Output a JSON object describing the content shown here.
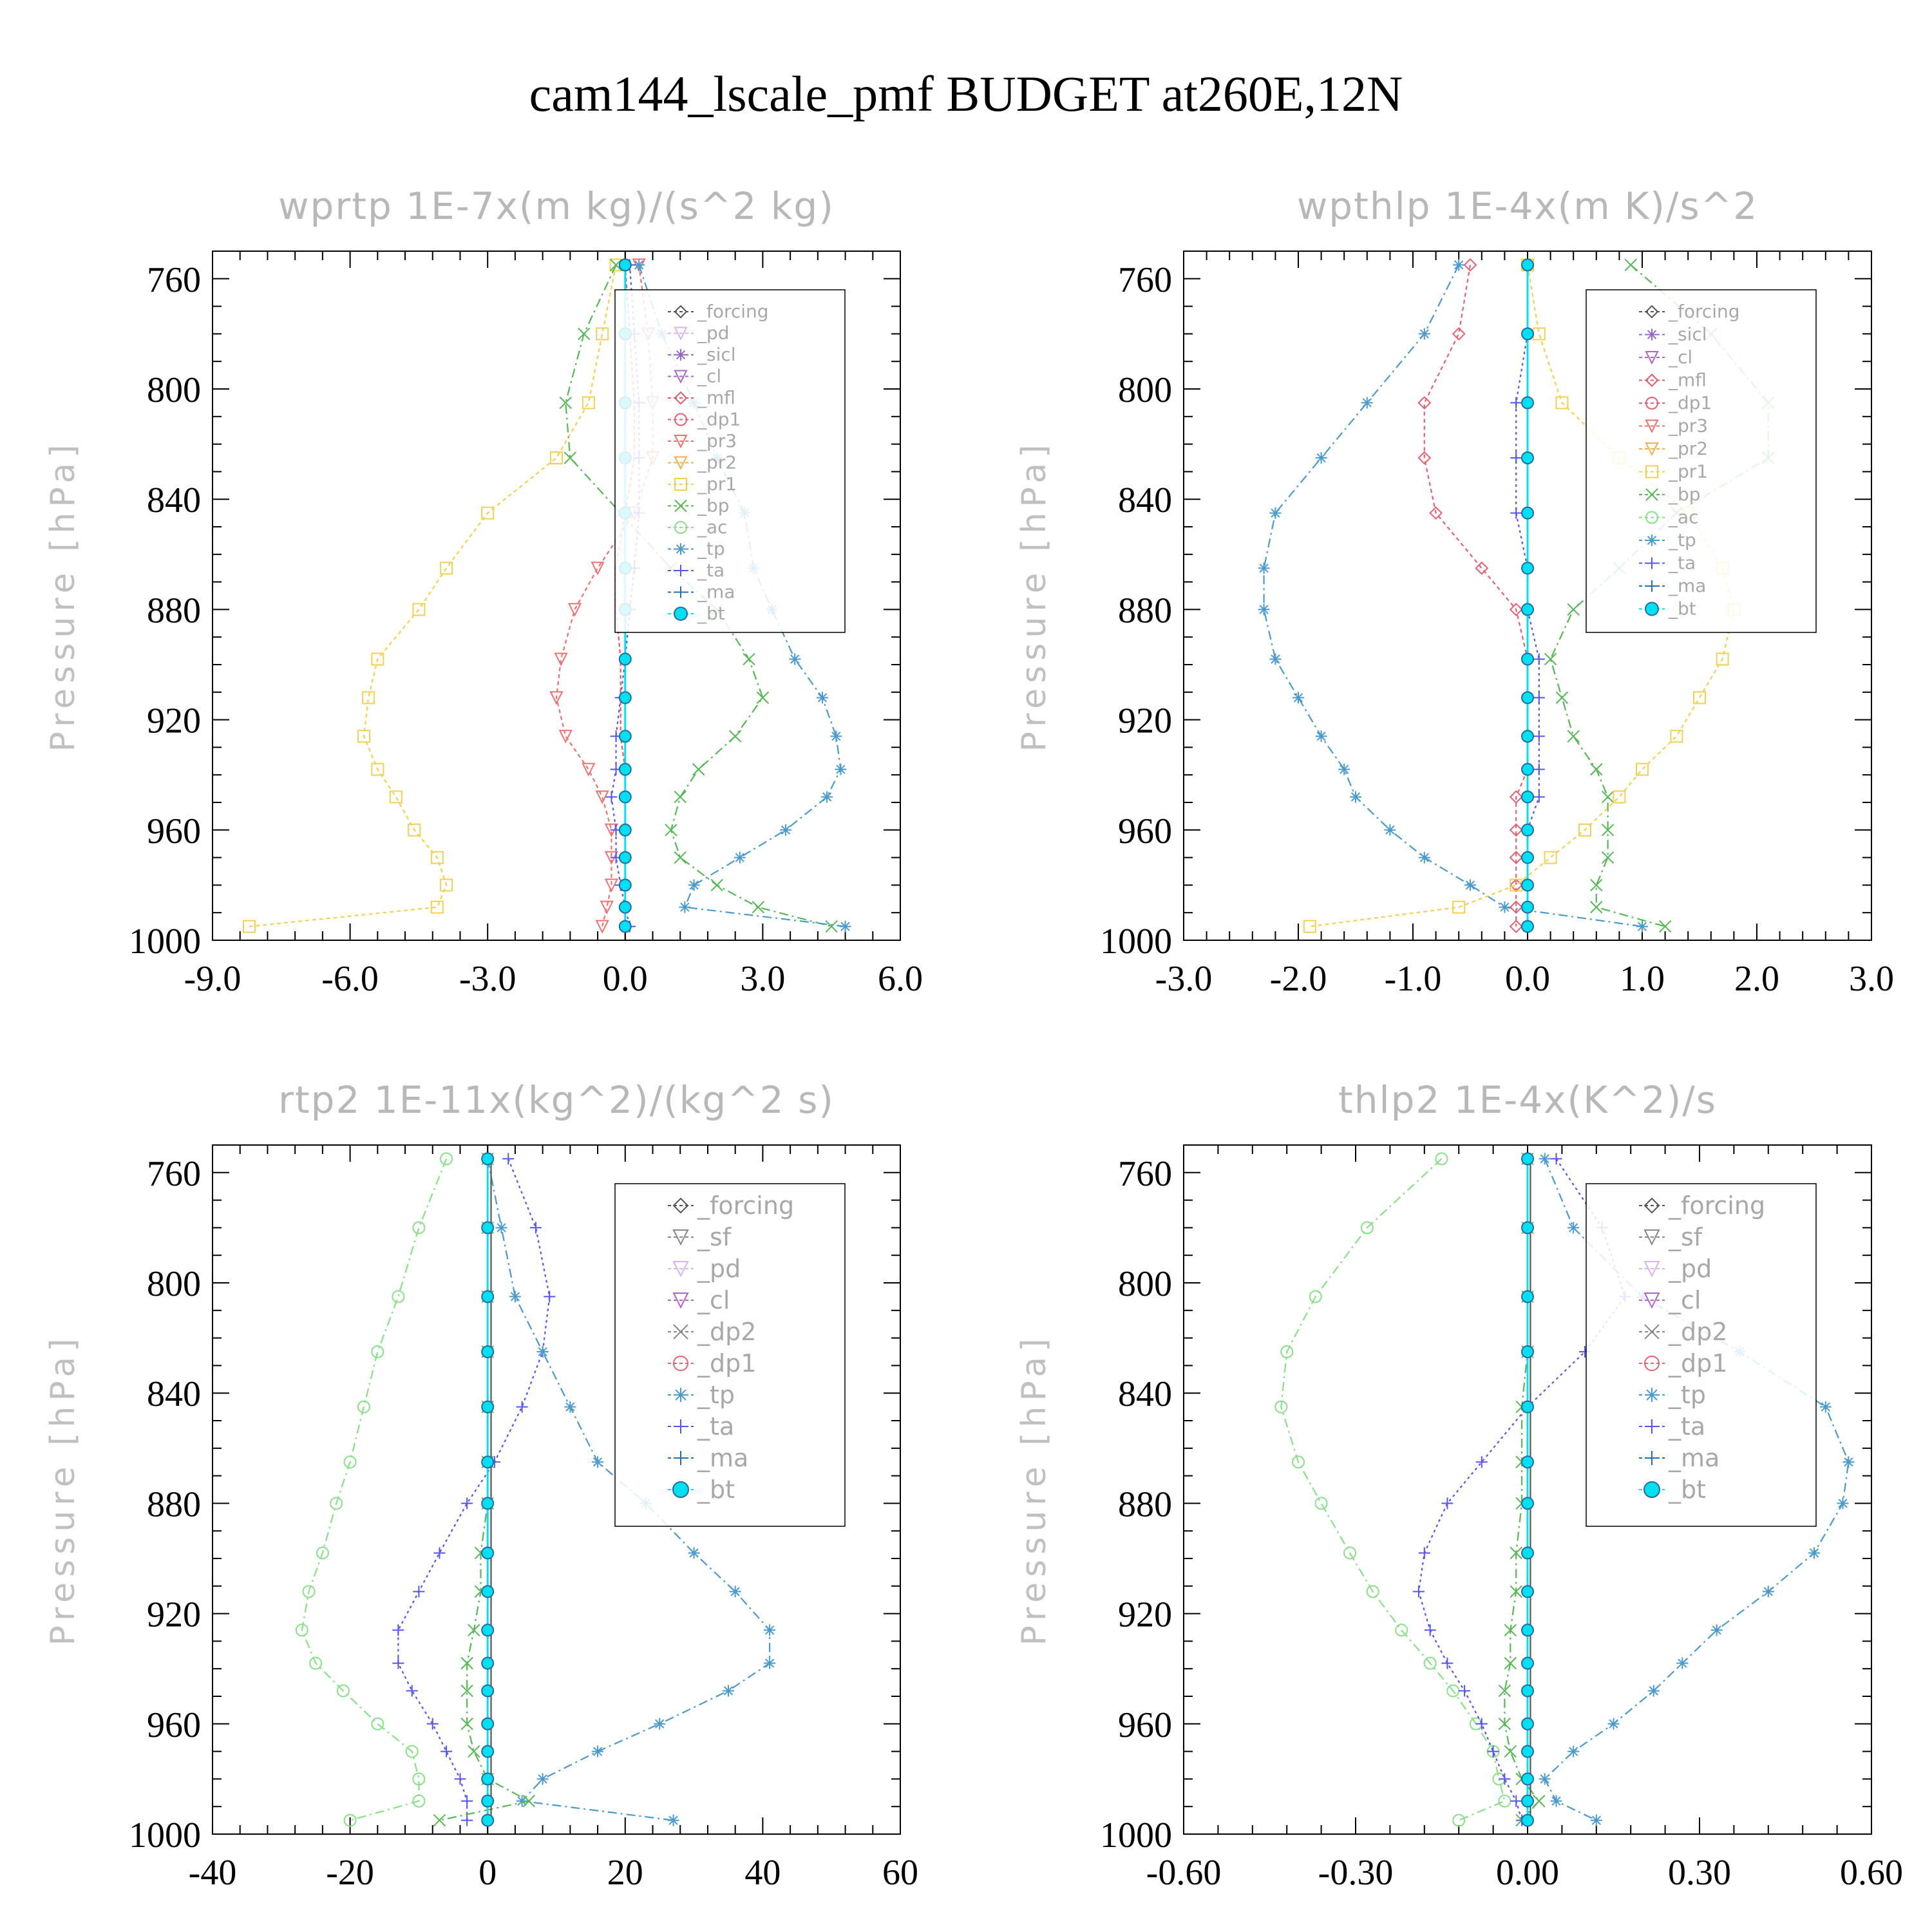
{
  "title": "cam144_lscale_pmf  BUDGET at260E,12N",
  "ylabel": "Pressure [hPa]",
  "colors": {
    "forcing": "#555555",
    "pd": "#d8b4f0",
    "sicl": "#9966cc",
    "cl": "#b066c8",
    "mfl": "#e05a6a",
    "dp1": "#e86070",
    "pr3": "#f07070",
    "pr2": "#f0b050",
    "pr1": "#f5d050",
    "bp": "#55b855",
    "ac": "#88e088",
    "tp": "#4a9ad0",
    "ta": "#5555ee",
    "ma": "#2070b0",
    "bt": "#00e0f0"
  },
  "chart_data": [
    {
      "type": "line",
      "title": "wprtp  1E-7x(m kg)/(s^2 kg)",
      "ylabel": "Pressure [hPa]",
      "xlim": [
        -9,
        6
      ],
      "ylim": [
        1000,
        750
      ],
      "xticks": [
        "-9.0",
        "-6.0",
        "-3.0",
        "0.0",
        "3.0",
        "6.0"
      ],
      "xtick_values": [
        -9,
        -6,
        -3,
        0,
        3,
        6
      ],
      "yticks": [
        "760",
        "800",
        "840",
        "880",
        "920",
        "960",
        "1000"
      ],
      "ytick_values": [
        760,
        800,
        840,
        880,
        920,
        960,
        1000
      ],
      "legend": [
        "_forcing",
        "_pd",
        "_sicl",
        "_cl",
        "_mfl",
        "_dp1",
        "_pr3",
        "_pr2",
        "_pr1",
        "_bp",
        "_ac",
        "_tp",
        "_ta",
        "_ma",
        "_bt"
      ],
      "p": [
        755,
        780,
        805,
        825,
        845,
        865,
        880,
        898,
        912,
        926,
        938,
        948,
        960,
        970,
        980,
        988,
        995
      ],
      "series": [
        {
          "key": "pr1",
          "marker": "square",
          "dash": "6,5",
          "x": [
            -0.2,
            -0.5,
            -0.8,
            -1.5,
            -3.0,
            -3.9,
            -4.5,
            -5.4,
            -5.6,
            -5.7,
            -5.4,
            -5.0,
            -4.6,
            -4.1,
            -3.9,
            -4.1,
            -8.2
          ]
        },
        {
          "key": "pr3",
          "marker": "tri-down",
          "dash": "6,5",
          "x": [
            0.3,
            0.5,
            0.6,
            0.6,
            0.2,
            -0.6,
            -1.1,
            -1.4,
            -1.5,
            -1.3,
            -0.8,
            -0.5,
            -0.3,
            -0.3,
            -0.3,
            -0.4,
            -0.5
          ]
        },
        {
          "key": "bp",
          "marker": "x",
          "dash": "14,6,3,6",
          "x": [
            -0.2,
            -0.9,
            -1.3,
            -1.2,
            -0.1,
            1.0,
            2.0,
            2.7,
            3.0,
            2.4,
            1.6,
            1.2,
            1.0,
            1.2,
            2.0,
            2.9,
            4.5
          ]
        },
        {
          "key": "tp",
          "marker": "star",
          "dash": "14,6,3,6",
          "x": [
            0.3,
            0.8,
            1.5,
            2.0,
            2.6,
            2.8,
            3.2,
            3.7,
            4.3,
            4.6,
            4.7,
            4.4,
            3.5,
            2.5,
            1.5,
            1.3,
            4.8
          ]
        },
        {
          "key": "ta",
          "marker": "plus",
          "dash": "4,5",
          "x": [
            0.1,
            0.2,
            0.3,
            0.3,
            0.3,
            0.2,
            0.1,
            0.0,
            -0.1,
            -0.2,
            -0.2,
            -0.3,
            -0.2,
            -0.2,
            -0.1,
            0.0,
            0.1
          ]
        },
        {
          "key": "mfl",
          "marker": "none",
          "dash": "6,4",
          "x": [
            0.0,
            0.1,
            0.2,
            0.2,
            0.0,
            -0.2,
            -0.2,
            -0.1,
            -0.1,
            -0.1,
            0.0,
            0.0,
            0.0,
            0.0,
            0.0,
            0.0,
            0.0
          ]
        },
        {
          "key": "bt",
          "marker": "dot",
          "dash": "",
          "x": [
            0,
            0,
            0,
            0,
            0,
            0,
            0,
            0,
            0,
            0,
            0,
            0,
            0,
            0,
            0,
            0,
            0
          ]
        }
      ]
    },
    {
      "type": "line",
      "title": "wpthlp  1E-4x(m K)/s^2",
      "ylabel": "Pressure [hPa]",
      "xlim": [
        -3,
        3
      ],
      "ylim": [
        1000,
        750
      ],
      "xticks": [
        "-3.0",
        "-2.0",
        "-1.0",
        "0.0",
        "1.0",
        "2.0",
        "3.0"
      ],
      "xtick_values": [
        -3,
        -2,
        -1,
        0,
        1,
        2,
        3
      ],
      "yticks": [
        "760",
        "800",
        "840",
        "880",
        "920",
        "960",
        "1000"
      ],
      "ytick_values": [
        760,
        800,
        840,
        880,
        920,
        960,
        1000
      ],
      "legend": [
        "_forcing",
        "_sicl",
        "_cl",
        "_mfl",
        "_dp1",
        "_pr3",
        "_pr2",
        "_pr1",
        "_bp",
        "_ac",
        "_tp",
        "_ta",
        "_ma",
        "_bt"
      ],
      "p": [
        755,
        780,
        805,
        825,
        845,
        865,
        880,
        898,
        912,
        926,
        938,
        948,
        960,
        970,
        980,
        988,
        995
      ],
      "series": [
        {
          "key": "tp",
          "marker": "star",
          "dash": "14,6,3,6",
          "x": [
            -0.6,
            -0.9,
            -1.4,
            -1.8,
            -2.2,
            -2.3,
            -2.3,
            -2.2,
            -2.0,
            -1.8,
            -1.6,
            -1.5,
            -1.2,
            -0.9,
            -0.5,
            -0.2,
            1.0
          ]
        },
        {
          "key": "dp1",
          "marker": "diamond",
          "dash": "6,5",
          "x": [
            -0.5,
            -0.6,
            -0.9,
            -0.9,
            -0.8,
            -0.4,
            -0.1,
            0.0,
            0.0,
            0.0,
            0.0,
            -0.1,
            -0.1,
            -0.1,
            -0.1,
            -0.1,
            -0.1
          ]
        },
        {
          "key": "bp",
          "marker": "x",
          "dash": "14,6,3,6",
          "x": [
            0.9,
            1.6,
            2.1,
            2.1,
            1.3,
            0.8,
            0.4,
            0.2,
            0.3,
            0.4,
            0.6,
            0.7,
            0.7,
            0.7,
            0.6,
            0.6,
            1.2
          ]
        },
        {
          "key": "pr1",
          "marker": "square",
          "dash": "6,5",
          "x": [
            0.0,
            0.1,
            0.3,
            0.8,
            1.4,
            1.7,
            1.8,
            1.7,
            1.5,
            1.3,
            1.0,
            0.8,
            0.5,
            0.2,
            -0.1,
            -0.6,
            -1.9
          ]
        },
        {
          "key": "ta",
          "marker": "plus",
          "dash": "4,5",
          "x": [
            0.0,
            0.0,
            -0.1,
            -0.1,
            -0.1,
            0.0,
            0.0,
            0.1,
            0.1,
            0.1,
            0.1,
            0.1,
            0.0,
            0.0,
            0.0,
            0.0,
            0.0
          ]
        },
        {
          "key": "bt",
          "marker": "dot",
          "dash": "",
          "x": [
            0,
            0,
            0,
            0,
            0,
            0,
            0,
            0,
            0,
            0,
            0,
            0,
            0,
            0,
            0,
            0,
            0
          ]
        }
      ]
    },
    {
      "type": "line",
      "title": "rtp2  1E-11x(kg^2)/(kg^2 s)",
      "ylabel": "Pressure [hPa]",
      "xlim": [
        -40,
        60
      ],
      "ylim": [
        1000,
        750
      ],
      "xticks": [
        "-40",
        "-20",
        "0",
        "20",
        "40",
        "60"
      ],
      "xtick_values": [
        -40,
        -20,
        0,
        20,
        40,
        60
      ],
      "yticks": [
        "760",
        "800",
        "840",
        "880",
        "920",
        "960",
        "1000"
      ],
      "ytick_values": [
        760,
        800,
        840,
        880,
        920,
        960,
        1000
      ],
      "legend": [
        "_forcing",
        "_sf",
        "_pd",
        "_cl",
        "_dp2",
        "_dp1",
        "_tp",
        "_ta",
        "_ma",
        "_bt"
      ],
      "p": [
        755,
        780,
        805,
        825,
        845,
        865,
        880,
        898,
        912,
        926,
        938,
        948,
        960,
        970,
        980,
        988,
        995
      ],
      "series": [
        {
          "key": "ac",
          "marker": "circle",
          "dash": "14,6,3,6",
          "x": [
            -6,
            -10,
            -13,
            -16,
            -18,
            -20,
            -22,
            -24,
            -26,
            -27,
            -25,
            -21,
            -16,
            -11,
            -10,
            -10,
            -20
          ]
        },
        {
          "key": "ta",
          "marker": "plus",
          "dash": "4,5",
          "x": [
            3,
            7,
            9,
            8,
            5,
            1,
            -3,
            -7,
            -10,
            -13,
            -13,
            -11,
            -8,
            -6,
            -4,
            -3,
            -3
          ]
        },
        {
          "key": "tp",
          "marker": "star",
          "dash": "14,6,3,6",
          "x": [
            0,
            2,
            4,
            8,
            12,
            16,
            23,
            30,
            36,
            41,
            41,
            35,
            25,
            16,
            8,
            5,
            27
          ]
        },
        {
          "key": "bp",
          "marker": "x",
          "dash": "14,6,3,6",
          "x": [
            0,
            0,
            0,
            0,
            0,
            0,
            0,
            -1,
            -1,
            -2,
            -3,
            -3,
            -3,
            -2,
            0,
            6,
            -7
          ]
        },
        {
          "key": "forcing",
          "marker": "none",
          "dash": "",
          "x": [
            0.5,
            0.5,
            0.5,
            0.5,
            0.5,
            0.5,
            0.5,
            0.5,
            0.5,
            0.5,
            0.5,
            0.5,
            0.5,
            0.5,
            0.5,
            0.5,
            0.5
          ]
        },
        {
          "key": "bt",
          "marker": "dot",
          "dash": "",
          "x": [
            0,
            0,
            0,
            0,
            0,
            0,
            0,
            0,
            0,
            0,
            0,
            0,
            0,
            0,
            0,
            0,
            0
          ]
        }
      ]
    },
    {
      "type": "line",
      "title": "thlp2  1E-4x(K^2)/s",
      "ylabel": "Pressure [hPa]",
      "xlim": [
        -0.6,
        0.6
      ],
      "ylim": [
        1000,
        750
      ],
      "xticks": [
        "-0.60",
        "-0.30",
        "0.00",
        "0.30",
        "0.60"
      ],
      "xtick_values": [
        -0.6,
        -0.3,
        0.0,
        0.3,
        0.6
      ],
      "yticks": [
        "760",
        "800",
        "840",
        "880",
        "920",
        "960",
        "1000"
      ],
      "ytick_values": [
        760,
        800,
        840,
        880,
        920,
        960,
        1000
      ],
      "legend": [
        "_forcing",
        "_sf",
        "_pd",
        "_cl",
        "_dp2",
        "_dp1",
        "_tp",
        "_ta",
        "_ma",
        "_bt"
      ],
      "p": [
        755,
        780,
        805,
        825,
        845,
        865,
        880,
        898,
        912,
        926,
        938,
        948,
        960,
        970,
        980,
        988,
        995
      ],
      "series": [
        {
          "key": "ac",
          "marker": "circle",
          "dash": "14,6,3,6",
          "x": [
            -0.15,
            -0.28,
            -0.37,
            -0.42,
            -0.43,
            -0.4,
            -0.36,
            -0.31,
            -0.27,
            -0.22,
            -0.17,
            -0.13,
            -0.09,
            -0.06,
            -0.05,
            -0.04,
            -0.12
          ]
        },
        {
          "key": "ta",
          "marker": "plus",
          "dash": "4,5",
          "x": [
            0.05,
            0.13,
            0.17,
            0.1,
            0.0,
            -0.08,
            -0.14,
            -0.18,
            -0.19,
            -0.17,
            -0.14,
            -0.11,
            -0.08,
            -0.06,
            -0.04,
            -0.02,
            -0.01
          ]
        },
        {
          "key": "tp",
          "marker": "star",
          "dash": "14,6,3,6",
          "x": [
            0.03,
            0.08,
            0.2,
            0.37,
            0.52,
            0.56,
            0.55,
            0.5,
            0.42,
            0.33,
            0.27,
            0.22,
            0.15,
            0.08,
            0.03,
            0.05,
            0.12
          ]
        },
        {
          "key": "bp",
          "marker": "x",
          "dash": "14,6,3,6",
          "x": [
            0.0,
            0.0,
            0.0,
            0.0,
            -0.01,
            -0.01,
            -0.01,
            -0.02,
            -0.02,
            -0.03,
            -0.03,
            -0.04,
            -0.04,
            -0.03,
            -0.01,
            0.02,
            -0.01
          ]
        },
        {
          "key": "forcing",
          "marker": "none",
          "dash": "",
          "x": [
            0.005,
            0.005,
            0.005,
            0.005,
            0.005,
            0.005,
            0.005,
            0.005,
            0.005,
            0.005,
            0.005,
            0.005,
            0.005,
            0.005,
            0.005,
            0.005,
            0.005
          ]
        },
        {
          "key": "bt",
          "marker": "dot",
          "dash": "",
          "x": [
            0,
            0,
            0,
            0,
            0,
            0,
            0,
            0,
            0,
            0,
            0,
            0,
            0,
            0,
            0,
            0,
            0
          ]
        }
      ]
    }
  ]
}
